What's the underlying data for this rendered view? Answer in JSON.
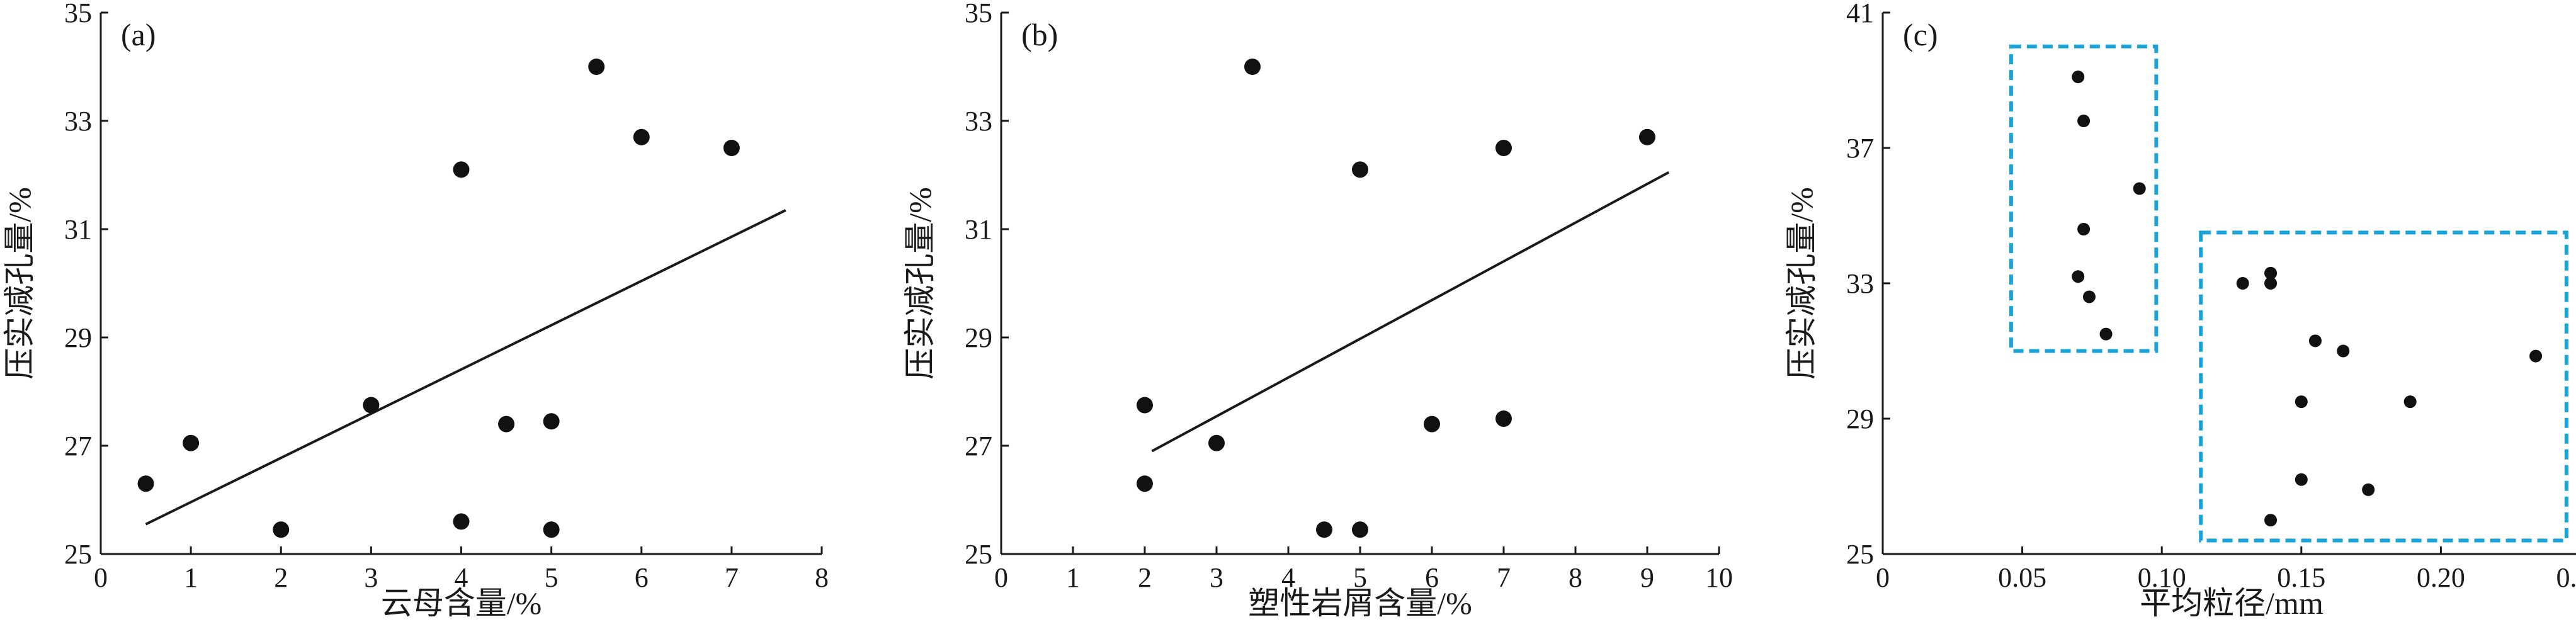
{
  "chart_data": [
    {
      "type": "scatter",
      "panel_label": "(a)",
      "xlabel": "云母含量/%",
      "ylabel": "压实减孔量/%",
      "xlim": [
        0,
        8
      ],
      "ylim": [
        25,
        35
      ],
      "xticks": [
        "0",
        "1",
        "2",
        "3",
        "4",
        "5",
        "6",
        "7",
        "8"
      ],
      "yticks": [
        "25",
        "27",
        "29",
        "31",
        "33",
        "35"
      ],
      "points": [
        {
          "x": 0.5,
          "y": 26.3
        },
        {
          "x": 1.0,
          "y": 27.05
        },
        {
          "x": 2.0,
          "y": 25.45
        },
        {
          "x": 3.0,
          "y": 27.75
        },
        {
          "x": 4.0,
          "y": 32.1
        },
        {
          "x": 4.0,
          "y": 25.6
        },
        {
          "x": 4.5,
          "y": 27.4
        },
        {
          "x": 5.0,
          "y": 27.45
        },
        {
          "x": 5.0,
          "y": 25.45
        },
        {
          "x": 5.5,
          "y": 34.0
        },
        {
          "x": 6.0,
          "y": 32.7
        },
        {
          "x": 7.0,
          "y": 32.5
        }
      ],
      "trendline": [
        [
          0.5,
          25.55
        ],
        [
          7.6,
          31.35
        ]
      ],
      "grid": false
    },
    {
      "type": "scatter",
      "panel_label": "(b)",
      "xlabel": "塑性岩屑含量/%",
      "ylabel": "压实减孔量/%",
      "xlim": [
        0,
        10
      ],
      "ylim": [
        25,
        35
      ],
      "xticks": [
        "0",
        "1",
        "2",
        "3",
        "4",
        "5",
        "6",
        "7",
        "8",
        "9",
        "10"
      ],
      "yticks": [
        "25",
        "27",
        "29",
        "31",
        "33",
        "35"
      ],
      "points": [
        {
          "x": 2.0,
          "y": 27.75
        },
        {
          "x": 2.0,
          "y": 26.3
        },
        {
          "x": 3.0,
          "y": 27.05
        },
        {
          "x": 3.5,
          "y": 34.0
        },
        {
          "x": 4.5,
          "y": 25.45
        },
        {
          "x": 5.0,
          "y": 25.45
        },
        {
          "x": 5.0,
          "y": 32.1
        },
        {
          "x": 6.0,
          "y": 27.4
        },
        {
          "x": 7.0,
          "y": 27.5
        },
        {
          "x": 7.0,
          "y": 32.5
        },
        {
          "x": 9.0,
          "y": 32.7
        }
      ],
      "trendline": [
        [
          2.1,
          26.9
        ],
        [
          9.3,
          32.05
        ]
      ],
      "grid": false
    },
    {
      "type": "scatter",
      "panel_label": "(c)",
      "xlabel": "平均粒径/mm",
      "ylabel": "压实减孔量/%",
      "xlim": [
        0,
        0.25
      ],
      "ylim": [
        25,
        41
      ],
      "xticks": [
        "0",
        "0.05",
        "0.10",
        "0.15",
        "0.20",
        "0.25"
      ],
      "yticks": [
        "25",
        "29",
        "33",
        "37",
        "41"
      ],
      "points": [
        {
          "x": 0.07,
          "y": 39.1
        },
        {
          "x": 0.072,
          "y": 37.8
        },
        {
          "x": 0.092,
          "y": 35.8
        },
        {
          "x": 0.072,
          "y": 34.6
        },
        {
          "x": 0.07,
          "y": 33.2
        },
        {
          "x": 0.074,
          "y": 32.6
        },
        {
          "x": 0.08,
          "y": 31.5
        },
        {
          "x": 0.129,
          "y": 33.0
        },
        {
          "x": 0.139,
          "y": 33.3
        },
        {
          "x": 0.139,
          "y": 33.0
        },
        {
          "x": 0.155,
          "y": 31.3
        },
        {
          "x": 0.165,
          "y": 31.0
        },
        {
          "x": 0.234,
          "y": 30.85
        },
        {
          "x": 0.15,
          "y": 29.5
        },
        {
          "x": 0.189,
          "y": 29.5
        },
        {
          "x": 0.15,
          "y": 27.2
        },
        {
          "x": 0.174,
          "y": 26.9
        },
        {
          "x": 0.139,
          "y": 26.0
        }
      ],
      "highlight_boxes": [
        {
          "x": [
            0.046,
            0.098
          ],
          "y": [
            31.0,
            40.0
          ]
        },
        {
          "x": [
            0.114,
            0.245
          ],
          "y": [
            25.4,
            34.5
          ]
        }
      ],
      "box_color": "#1aa3d9",
      "grid": false
    }
  ]
}
